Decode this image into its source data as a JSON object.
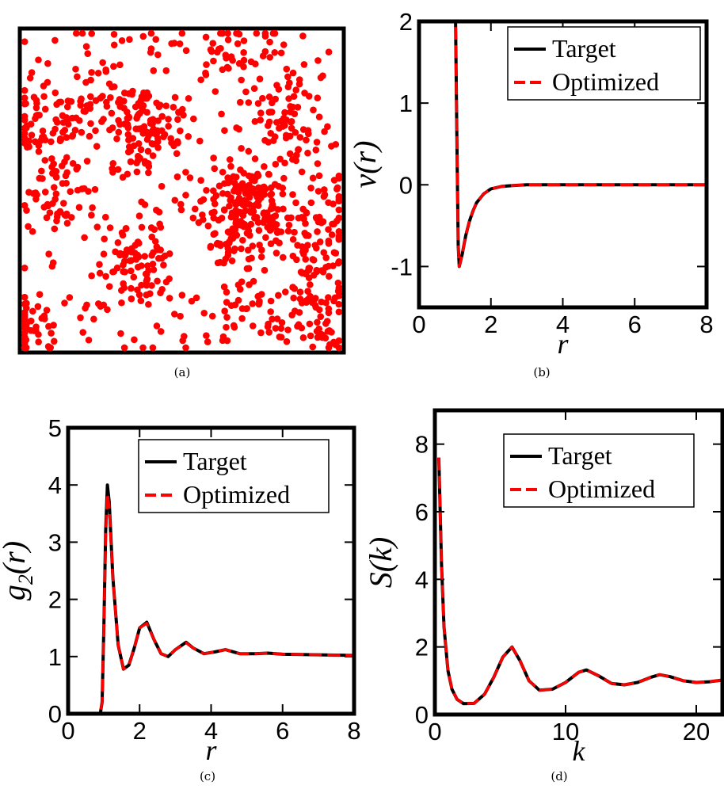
{
  "colors": {
    "target": "#000000",
    "optimized": "#ff0000",
    "points": "#ff0000"
  },
  "legend": {
    "target": "Target",
    "optimized": "Optimized"
  },
  "captions": {
    "a": "(a)",
    "b": "(b)",
    "c": "(c)",
    "d": "(d)"
  },
  "chart_data": [
    {
      "panel": "a",
      "type": "scatter",
      "description_seed": 7,
      "points_count": 1100,
      "xlim": [
        0,
        1
      ],
      "ylim": [
        0,
        1
      ]
    },
    {
      "panel": "b",
      "type": "line",
      "xlabel": "r",
      "ylabel": "v(r)",
      "xlim": [
        0,
        8
      ],
      "ylim": [
        -1.5,
        2
      ],
      "xticks": [
        0,
        2,
        4,
        6,
        8
      ],
      "xtick_labels": [
        "0",
        "2",
        "4",
        "6",
        "8"
      ],
      "yticks": [
        -1,
        0,
        1,
        2
      ],
      "ytick_labels": [
        "-1",
        "0",
        "1",
        "2"
      ],
      "series": [
        {
          "name": "Target",
          "x": [
            1.0,
            1.03,
            1.06,
            1.09,
            1.12,
            1.2,
            1.3,
            1.4,
            1.5,
            1.6,
            1.8,
            2.0,
            2.3,
            2.6,
            3.0,
            4.0,
            5.0,
            6.0,
            7.0,
            8.0
          ],
          "y": [
            2.6,
            1.5,
            0.3,
            -0.75,
            -1.0,
            -0.85,
            -0.62,
            -0.45,
            -0.32,
            -0.22,
            -0.11,
            -0.05,
            -0.02,
            -0.01,
            0.0,
            0.0,
            0.0,
            0.0,
            0.0,
            0.0
          ]
        },
        {
          "name": "Optimized",
          "x": [
            1.0,
            1.03,
            1.06,
            1.09,
            1.12,
            1.2,
            1.3,
            1.4,
            1.5,
            1.6,
            1.8,
            2.0,
            2.3,
            2.6,
            3.0,
            4.0,
            5.0,
            6.0,
            7.0,
            8.0
          ],
          "y": [
            2.6,
            1.5,
            0.3,
            -0.75,
            -1.0,
            -0.85,
            -0.62,
            -0.45,
            -0.32,
            -0.22,
            -0.11,
            -0.05,
            -0.02,
            -0.01,
            0.0,
            0.0,
            0.0,
            0.0,
            0.0,
            0.0
          ]
        }
      ]
    },
    {
      "panel": "c",
      "type": "line",
      "xlabel": "r",
      "ylabel": "g2(r)",
      "xlim": [
        0,
        8
      ],
      "ylim": [
        0,
        5
      ],
      "xticks": [
        0,
        2,
        4,
        6,
        8
      ],
      "xtick_labels": [
        "0",
        "2",
        "4",
        "6",
        "8"
      ],
      "yticks": [
        0,
        1,
        2,
        3,
        4,
        5
      ],
      "ytick_labels": [
        "0",
        "1",
        "2",
        "3",
        "4",
        "5"
      ],
      "series": [
        {
          "name": "Target",
          "x": [
            0,
            0.9,
            0.95,
            1.0,
            1.05,
            1.1,
            1.15,
            1.25,
            1.4,
            1.55,
            1.7,
            1.85,
            2.0,
            2.2,
            2.4,
            2.6,
            2.8,
            3.0,
            3.3,
            3.5,
            3.8,
            4.1,
            4.4,
            4.8,
            5.2,
            5.6,
            6.0,
            7.0,
            8.0
          ],
          "y": [
            0,
            0,
            0.2,
            1.5,
            3.2,
            4.0,
            3.7,
            2.4,
            1.2,
            0.78,
            0.85,
            1.15,
            1.5,
            1.6,
            1.3,
            1.05,
            1.0,
            1.12,
            1.25,
            1.15,
            1.05,
            1.08,
            1.12,
            1.05,
            1.05,
            1.06,
            1.04,
            1.03,
            1.02
          ]
        },
        {
          "name": "Optimized",
          "x": [
            0,
            0.9,
            0.95,
            1.0,
            1.05,
            1.1,
            1.15,
            1.25,
            1.4,
            1.55,
            1.7,
            1.85,
            2.0,
            2.2,
            2.4,
            2.6,
            2.8,
            3.0,
            3.3,
            3.5,
            3.8,
            4.1,
            4.4,
            4.8,
            5.2,
            5.6,
            6.0,
            7.0,
            8.0
          ],
          "y": [
            0,
            0,
            0.2,
            1.5,
            3.1,
            3.85,
            3.6,
            2.4,
            1.2,
            0.78,
            0.85,
            1.15,
            1.5,
            1.58,
            1.3,
            1.05,
            1.0,
            1.12,
            1.24,
            1.15,
            1.05,
            1.08,
            1.12,
            1.05,
            1.05,
            1.06,
            1.04,
            1.03,
            1.02
          ]
        }
      ]
    },
    {
      "panel": "d",
      "type": "line",
      "xlabel": "k",
      "ylabel": "S(k)",
      "xlim": [
        0,
        22
      ],
      "ylim": [
        0,
        9
      ],
      "xticks": [
        0,
        10,
        20
      ],
      "xtick_labels": [
        "0",
        "10",
        "20"
      ],
      "yticks": [
        0,
        2,
        4,
        6,
        8
      ],
      "ytick_labels": [
        "0",
        "2",
        "4",
        "6",
        "8"
      ],
      "series": [
        {
          "name": "Target",
          "x": [
            0.3,
            0.5,
            0.7,
            1.0,
            1.3,
            1.7,
            2.2,
            3.0,
            3.8,
            4.5,
            5.2,
            5.9,
            6.5,
            7.2,
            8.0,
            9.0,
            10.0,
            11.0,
            11.6,
            12.5,
            13.5,
            14.5,
            15.5,
            16.5,
            17.2,
            18.0,
            19.0,
            20.0,
            21.0,
            22.0
          ],
          "y": [
            7.6,
            4.5,
            2.6,
            1.3,
            0.75,
            0.45,
            0.32,
            0.33,
            0.6,
            1.1,
            1.7,
            2.0,
            1.6,
            1.0,
            0.72,
            0.75,
            0.95,
            1.25,
            1.32,
            1.15,
            0.92,
            0.88,
            0.95,
            1.1,
            1.18,
            1.12,
            1.0,
            0.95,
            0.97,
            1.02
          ]
        },
        {
          "name": "Optimized",
          "x": [
            0.3,
            0.5,
            0.7,
            1.0,
            1.3,
            1.7,
            2.2,
            3.0,
            3.8,
            4.5,
            5.2,
            5.9,
            6.5,
            7.2,
            8.0,
            9.0,
            10.0,
            11.0,
            11.6,
            12.5,
            13.5,
            14.5,
            15.5,
            16.5,
            17.2,
            18.0,
            19.0,
            20.0,
            21.0,
            22.0
          ],
          "y": [
            7.6,
            4.5,
            2.6,
            1.3,
            0.75,
            0.45,
            0.32,
            0.33,
            0.6,
            1.1,
            1.7,
            2.0,
            1.6,
            1.0,
            0.72,
            0.75,
            0.95,
            1.25,
            1.32,
            1.15,
            0.92,
            0.88,
            0.95,
            1.1,
            1.18,
            1.12,
            1.0,
            0.95,
            0.97,
            1.02
          ]
        }
      ]
    }
  ]
}
